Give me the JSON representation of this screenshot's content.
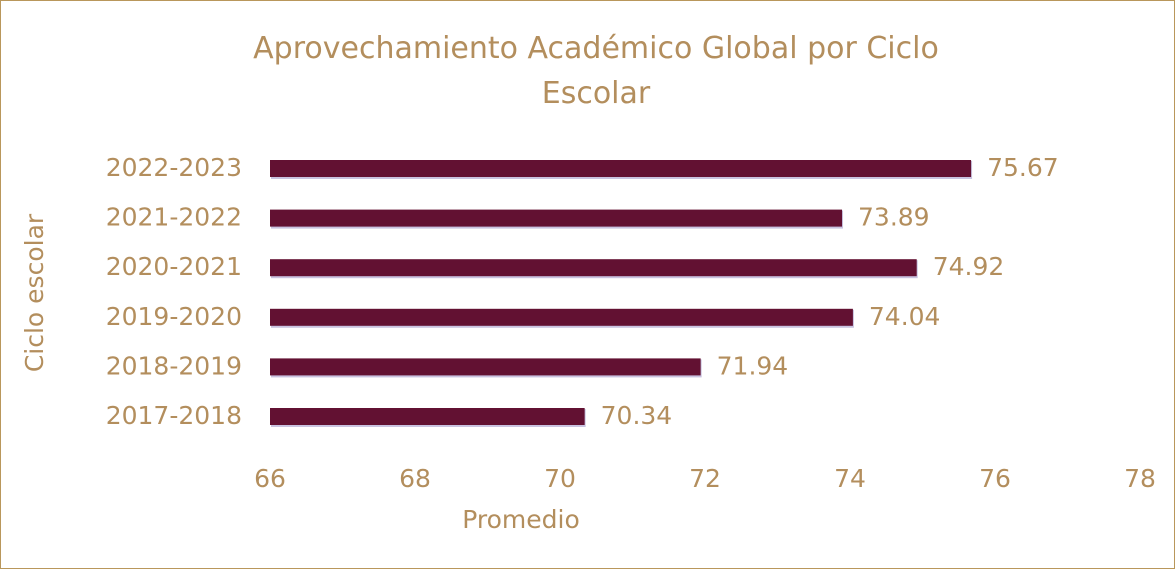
{
  "chart_data": {
    "type": "bar",
    "orientation": "horizontal",
    "title": "Aprovechamiento Académico Global por Ciclo Escolar",
    "x_label": "Promedio",
    "y_label": "Ciclo escolar",
    "categories": [
      "2017-2018",
      "2018-2019",
      "2019-2020",
      "2020-2021",
      "2021-2022",
      "2022-2023"
    ],
    "values": [
      70.34,
      71.94,
      74.04,
      74.92,
      73.89,
      75.67
    ],
    "color": "#621132",
    "xlim": [
      66,
      78
    ],
    "xticks": [
      66,
      68,
      70,
      72,
      74,
      76,
      78
    ],
    "grid": false
  }
}
